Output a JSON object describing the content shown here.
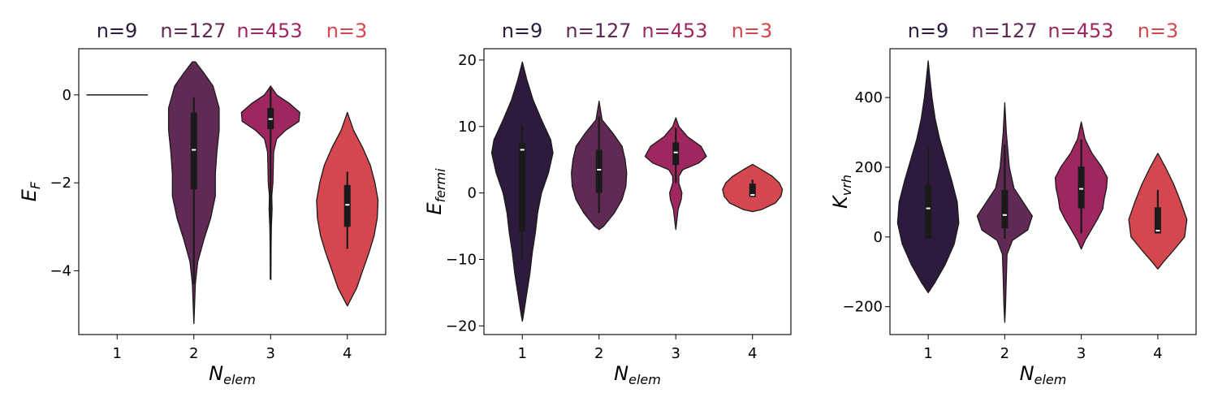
{
  "chart_data": [
    {
      "type": "violin",
      "xlabel": "N",
      "xlabel_sub": "elem",
      "ylabel": "E",
      "ylabel_sub": "F",
      "categories": [
        "1",
        "2",
        "3",
        "4"
      ],
      "counts": [
        "n=9",
        "n=127",
        "n=453",
        "n=3"
      ],
      "colors": [
        "#2d1a3d",
        "#612a55",
        "#9e2760",
        "#d4474f"
      ],
      "ylim": [
        -5.45,
        1.05
      ],
      "yticks": [
        0,
        -2,
        -4
      ],
      "ytick_labels": [
        "0",
        "−2",
        "−4"
      ],
      "violins": [
        {
          "category": "1",
          "kind": "flat",
          "value": 0,
          "half_width": 0.4
        },
        {
          "category": "2",
          "profile": [
            [
              0.75,
              0.02
            ],
            [
              0.5,
              0.13
            ],
            [
              0.2,
              0.25
            ],
            [
              -0.3,
              0.33
            ],
            [
              -0.8,
              0.33
            ],
            [
              -1.3,
              0.3
            ],
            [
              -1.8,
              0.28
            ],
            [
              -2.3,
              0.28
            ],
            [
              -2.8,
              0.22
            ],
            [
              -3.3,
              0.13
            ],
            [
              -3.8,
              0.05
            ],
            [
              -4.3,
              0.02
            ],
            [
              -5.2,
              0.0
            ]
          ],
          "whisker": [
            -4.3,
            -0.05
          ],
          "q1": -2.15,
          "q3": -0.4,
          "median": -1.25
        },
        {
          "category": "3",
          "profile": [
            [
              0.2,
              0.0
            ],
            [
              0.0,
              0.08
            ],
            [
              -0.2,
              0.25
            ],
            [
              -0.4,
              0.38
            ],
            [
              -0.6,
              0.37
            ],
            [
              -0.8,
              0.2
            ],
            [
              -1.0,
              0.08
            ],
            [
              -1.3,
              0.04
            ],
            [
              -1.6,
              0.035
            ],
            [
              -2.0,
              0.03
            ],
            [
              -2.3,
              0.015
            ],
            [
              -2.6,
              0.02
            ],
            [
              -3.0,
              0.01
            ],
            [
              -4.2,
              0.0
            ]
          ],
          "whisker": [
            -4.2,
            0.15
          ],
          "q1": -0.78,
          "q3": -0.3,
          "median": -0.55
        },
        {
          "category": "4",
          "profile": [
            [
              -0.4,
              0.0
            ],
            [
              -0.8,
              0.08
            ],
            [
              -1.2,
              0.2
            ],
            [
              -1.6,
              0.3
            ],
            [
              -2.0,
              0.36
            ],
            [
              -2.4,
              0.4
            ],
            [
              -2.8,
              0.39
            ],
            [
              -3.2,
              0.35
            ],
            [
              -3.6,
              0.28
            ],
            [
              -4.0,
              0.2
            ],
            [
              -4.4,
              0.12
            ],
            [
              -4.8,
              0.0
            ]
          ],
          "whisker": [
            -3.5,
            -1.75
          ],
          "q1": -3.0,
          "q3": -2.05,
          "median": -2.5
        }
      ]
    },
    {
      "type": "violin",
      "xlabel": "N",
      "xlabel_sub": "elem",
      "ylabel": "E",
      "ylabel_sub": "fermi",
      "categories": [
        "1",
        "2",
        "3",
        "4"
      ],
      "counts": [
        "n=9",
        "n=127",
        "n=453",
        "n=3"
      ],
      "colors": [
        "#2d1a3d",
        "#612a55",
        "#9e2760",
        "#d4474f"
      ],
      "ylim": [
        -21.3,
        21.7
      ],
      "yticks": [
        20,
        10,
        0,
        -10,
        -20
      ],
      "ytick_labels": [
        "20",
        "10",
        "0",
        "−10",
        "−20"
      ],
      "violins": [
        {
          "category": "1",
          "profile": [
            [
              19.7,
              0.0
            ],
            [
              17,
              0.06
            ],
            [
              14,
              0.14
            ],
            [
              11,
              0.25
            ],
            [
              8,
              0.37
            ],
            [
              6,
              0.4
            ],
            [
              3,
              0.34
            ],
            [
              0,
              0.25
            ],
            [
              -3,
              0.2
            ],
            [
              -6,
              0.17
            ],
            [
              -9,
              0.13
            ],
            [
              -12,
              0.1
            ],
            [
              -15,
              0.06
            ],
            [
              -18,
              0.02
            ],
            [
              -19.3,
              0.0
            ]
          ],
          "whisker": [
            -10,
            10.2
          ],
          "q1": -5.8,
          "q3": 7.5,
          "median": 6.5
        },
        {
          "category": "2",
          "profile": [
            [
              13.8,
              0.0
            ],
            [
              11,
              0.04
            ],
            [
              9,
              0.18
            ],
            [
              7,
              0.3
            ],
            [
              5,
              0.34
            ],
            [
              3,
              0.36
            ],
            [
              1,
              0.35
            ],
            [
              -1,
              0.3
            ],
            [
              -3,
              0.2
            ],
            [
              -5,
              0.06
            ],
            [
              -5.5,
              0.0
            ]
          ],
          "whisker": [
            -3,
            11.5
          ],
          "q1": 0,
          "q3": 6.5,
          "median": 3.5
        },
        {
          "category": "3",
          "profile": [
            [
              11.3,
              0.0
            ],
            [
              10,
              0.04
            ],
            [
              8.5,
              0.15
            ],
            [
              7,
              0.33
            ],
            [
              5.5,
              0.4
            ],
            [
              4.5,
              0.3
            ],
            [
              3.5,
              0.09
            ],
            [
              2.5,
              0.04
            ],
            [
              1.5,
              0.04
            ],
            [
              0,
              0.08
            ],
            [
              -1,
              0.07
            ],
            [
              -2.5,
              0.03
            ],
            [
              -4,
              0.015
            ],
            [
              -5.5,
              0.0
            ]
          ],
          "whisker": [
            1.5,
            9.8
          ],
          "q1": 4.2,
          "q3": 7.6,
          "median": 6.1
        },
        {
          "category": "4",
          "profile": [
            [
              4.3,
              0.0
            ],
            [
              3.5,
              0.12
            ],
            [
              2.5,
              0.26
            ],
            [
              1.5,
              0.35
            ],
            [
              0.5,
              0.39
            ],
            [
              -0.5,
              0.37
            ],
            [
              -1.5,
              0.3
            ],
            [
              -2.5,
              0.12
            ],
            [
              -2.8,
              0.0
            ]
          ],
          "whisker": [
            -0.5,
            2.0
          ],
          "q1": -0.6,
          "q3": 1.4,
          "median": -0.3
        }
      ]
    },
    {
      "type": "violin",
      "xlabel": "N",
      "xlabel_sub": "elem",
      "ylabel": "K",
      "ylabel_sub": "vrh",
      "categories": [
        "1",
        "2",
        "3",
        "4"
      ],
      "counts": [
        "n=9",
        "n=127",
        "n=453",
        "n=3"
      ],
      "colors": [
        "#2d1a3d",
        "#612a55",
        "#9e2760",
        "#d4474f"
      ],
      "ylim": [
        -280,
        540
      ],
      "yticks": [
        400,
        200,
        0,
        -200
      ],
      "ytick_labels": [
        "400",
        "200",
        "0",
        "−200"
      ],
      "violins": [
        {
          "category": "1",
          "profile": [
            [
              505,
              0.0
            ],
            [
              460,
              0.02
            ],
            [
              400,
              0.05
            ],
            [
              340,
              0.09
            ],
            [
              280,
              0.15
            ],
            [
              220,
              0.23
            ],
            [
              160,
              0.31
            ],
            [
              100,
              0.38
            ],
            [
              40,
              0.4
            ],
            [
              -20,
              0.34
            ],
            [
              -80,
              0.22
            ],
            [
              -130,
              0.09
            ],
            [
              -160,
              0.0
            ]
          ],
          "whisker": [
            -5,
            255
          ],
          "q1": -5,
          "q3": 148,
          "median": 82
        },
        {
          "category": "2",
          "profile": [
            [
              385,
              0.0
            ],
            [
              300,
              0.02
            ],
            [
              200,
              0.06
            ],
            [
              140,
              0.12
            ],
            [
              100,
              0.24
            ],
            [
              60,
              0.36
            ],
            [
              20,
              0.3
            ],
            [
              -10,
              0.1
            ],
            [
              -50,
              0.03
            ],
            [
              -120,
              0.02
            ],
            [
              -200,
              0.01
            ],
            [
              -245,
              0.0
            ]
          ],
          "whisker": [
            -5,
            265
          ],
          "q1": 25,
          "q3": 135,
          "median": 63
        },
        {
          "category": "3",
          "profile": [
            [
              330,
              0.0
            ],
            [
              280,
              0.05
            ],
            [
              240,
              0.14
            ],
            [
              200,
              0.27
            ],
            [
              170,
              0.34
            ],
            [
              140,
              0.33
            ],
            [
              110,
              0.3
            ],
            [
              80,
              0.28
            ],
            [
              50,
              0.21
            ],
            [
              20,
              0.13
            ],
            [
              -10,
              0.05
            ],
            [
              -35,
              0.0
            ]
          ],
          "whisker": [
            10,
            280
          ],
          "q1": 82,
          "q3": 202,
          "median": 138
        },
        {
          "category": "4",
          "profile": [
            [
              240,
              0.0
            ],
            [
              200,
              0.1
            ],
            [
              150,
              0.21
            ],
            [
              100,
              0.3
            ],
            [
              50,
              0.38
            ],
            [
              0,
              0.35
            ],
            [
              -40,
              0.2
            ],
            [
              -70,
              0.08
            ],
            [
              -92,
              0.0
            ]
          ],
          "whisker": [
            10,
            135
          ],
          "q1": 10,
          "q3": 85,
          "median": 18
        }
      ]
    }
  ]
}
